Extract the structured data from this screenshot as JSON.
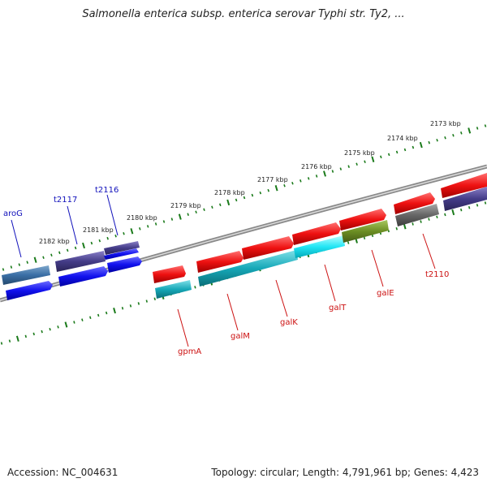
{
  "title": "Salmonella enterica subsp. enterica serovar Typhi str. Ty2, ...",
  "footer": {
    "accession": "Accession: NC_004631",
    "summary": "Topology: circular; Length: 4,791,961 bp; Genes: 4,423"
  },
  "kbp_labels": [
    "2182 kbp",
    "2181 kbp",
    "2180 kbp",
    "2179 kbp",
    "2178 kbp",
    "2177 kbp",
    "2176 kbp",
    "2175 kbp",
    "2174 kbp",
    "2173 kbp"
  ],
  "gene_labels": [
    "aroG",
    "t2117",
    "t2116",
    "gpmA",
    "galM",
    "galK",
    "galT",
    "galE",
    "t2110"
  ],
  "colors": {
    "forward": "#ee1111",
    "reverse": "#1111ee",
    "reverse_dark": "#443c88",
    "cyan": "#11bbcc",
    "olive": "#6b8e23",
    "gray": "#666666",
    "label_red": "#cc1111",
    "label_blue": "#1111bb",
    "ticks": "#1a7a1a"
  }
}
